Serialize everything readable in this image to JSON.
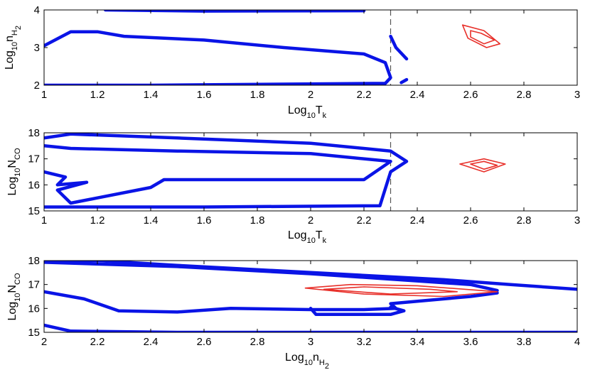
{
  "chart_data": [
    {
      "type": "contour",
      "xlim": [
        1,
        3
      ],
      "ylim": [
        2,
        4
      ],
      "x_ticks": [
        "1",
        "1.2",
        "1.4",
        "1.6",
        "1.8",
        "2",
        "2.2",
        "2.4",
        "2.6",
        "2.8",
        "3"
      ],
      "y_ticks": [
        "2",
        "3",
        "4"
      ],
      "xlabel": {
        "base": "Log",
        "base_sub": "10",
        "var": "T",
        "var_sub": "k"
      },
      "ylabel": {
        "base": "Log",
        "base_sub": "10",
        "var": "n",
        "var_sub": "H",
        "var_subsub": "2"
      },
      "vline_x": 2.3,
      "blue_color": "#0a14e6",
      "red_color": "#e8302a",
      "blue_contours": [
        [
          [
            1.23,
            4.0
          ],
          [
            1.6,
            3.97
          ],
          [
            2.2,
            3.98
          ]
        ],
        [
          [
            1.0,
            3.05
          ],
          [
            1.1,
            3.42
          ],
          [
            1.2,
            3.42
          ],
          [
            1.3,
            3.3
          ],
          [
            1.6,
            3.2
          ],
          [
            1.9,
            3.0
          ],
          [
            2.2,
            2.83
          ],
          [
            2.28,
            2.6
          ],
          [
            2.3,
            2.2
          ],
          [
            2.28,
            2.05
          ],
          [
            1.4,
            2.0
          ],
          [
            1.0,
            2.0
          ]
        ],
        [
          [
            2.3,
            3.3
          ],
          [
            2.32,
            3.0
          ],
          [
            2.36,
            2.7
          ]
        ],
        [
          [
            2.34,
            2.07
          ],
          [
            2.36,
            2.15
          ]
        ]
      ],
      "red_contours": [
        [
          [
            2.57,
            3.6
          ],
          [
            2.65,
            3.45
          ],
          [
            2.71,
            3.1
          ],
          [
            2.66,
            3.0
          ],
          [
            2.59,
            3.25
          ],
          [
            2.57,
            3.6
          ]
        ],
        [
          [
            2.6,
            3.45
          ],
          [
            2.64,
            3.38
          ],
          [
            2.69,
            3.2
          ],
          [
            2.65,
            3.1
          ],
          [
            2.6,
            3.28
          ],
          [
            2.6,
            3.45
          ]
        ]
      ]
    },
    {
      "type": "contour",
      "xlim": [
        1,
        3
      ],
      "ylim": [
        15,
        18
      ],
      "x_ticks": [
        "1",
        "1.2",
        "1.4",
        "1.6",
        "1.8",
        "2",
        "2.2",
        "2.4",
        "2.6",
        "2.8",
        "3"
      ],
      "y_ticks": [
        "15",
        "16",
        "17",
        "18"
      ],
      "xlabel": {
        "base": "Log",
        "base_sub": "10",
        "var": "T",
        "var_sub": "k"
      },
      "ylabel": {
        "base": "Log",
        "base_sub": "10",
        "var": "N",
        "var_sub": "CO"
      },
      "vline_x": 2.3,
      "blue_color": "#0a14e6",
      "red_color": "#e8302a",
      "blue_contours": [
        [
          [
            1.0,
            17.8
          ],
          [
            1.1,
            17.95
          ],
          [
            1.5,
            17.8
          ],
          [
            2.0,
            17.6
          ],
          [
            2.3,
            17.3
          ],
          [
            2.36,
            16.9
          ],
          [
            2.3,
            16.5
          ],
          [
            2.26,
            15.2
          ],
          [
            1.6,
            15.15
          ],
          [
            1.0,
            15.15
          ]
        ],
        [
          [
            1.0,
            16.5
          ],
          [
            1.08,
            16.3
          ],
          [
            1.05,
            16.0
          ],
          [
            1.16,
            16.1
          ],
          [
            1.05,
            15.8
          ],
          [
            1.1,
            15.3
          ],
          [
            1.2,
            15.5
          ],
          [
            1.4,
            15.9
          ],
          [
            1.45,
            16.2
          ],
          [
            2.2,
            16.2
          ],
          [
            2.3,
            16.9
          ],
          [
            2.0,
            17.2
          ],
          [
            1.5,
            17.3
          ],
          [
            1.1,
            17.4
          ],
          [
            1.0,
            17.5
          ]
        ]
      ],
      "red_contours": [
        [
          [
            2.56,
            16.8
          ],
          [
            2.65,
            17.0
          ],
          [
            2.73,
            16.8
          ],
          [
            2.65,
            16.5
          ],
          [
            2.56,
            16.8
          ]
        ],
        [
          [
            2.6,
            16.8
          ],
          [
            2.65,
            16.9
          ],
          [
            2.7,
            16.75
          ],
          [
            2.65,
            16.6
          ],
          [
            2.6,
            16.8
          ]
        ]
      ]
    },
    {
      "type": "contour",
      "xlim": [
        2,
        4
      ],
      "ylim": [
        15,
        18
      ],
      "x_ticks": [
        "2",
        "2.2",
        "2.4",
        "2.6",
        "2.8",
        "3",
        "3.2",
        "3.4",
        "3.6",
        "3.8",
        "4"
      ],
      "y_ticks": [
        "15",
        "16",
        "17",
        "18"
      ],
      "xlabel": {
        "base": "Log",
        "base_sub": "10",
        "var": "n",
        "var_sub": "H",
        "var_subsub": "2"
      },
      "ylabel": {
        "base": "Log",
        "base_sub": "10",
        "var": "N",
        "var_sub": "CO"
      },
      "vline_x": null,
      "blue_color": "#0a14e6",
      "red_color": "#e8302a",
      "blue_contours": [
        [
          [
            2.0,
            17.95
          ],
          [
            2.2,
            18.0
          ],
          [
            2.5,
            17.8
          ],
          [
            3.0,
            17.5
          ],
          [
            3.5,
            17.2
          ],
          [
            3.75,
            17.0
          ],
          [
            4.0,
            16.8
          ]
        ],
        [
          [
            2.0,
            17.93
          ],
          [
            2.5,
            17.75
          ],
          [
            3.0,
            17.45
          ],
          [
            3.6,
            17.0
          ],
          [
            3.7,
            16.75
          ]
        ],
        [
          [
            2.0,
            16.7
          ],
          [
            2.15,
            16.4
          ],
          [
            2.28,
            15.9
          ],
          [
            2.5,
            15.85
          ],
          [
            2.7,
            16.0
          ],
          [
            3.0,
            15.95
          ],
          [
            3.2,
            15.95
          ],
          [
            3.32,
            16.0
          ],
          [
            3.3,
            16.2
          ],
          [
            3.6,
            16.5
          ],
          [
            3.7,
            16.65
          ]
        ],
        [
          [
            3.0,
            16.0
          ],
          [
            3.02,
            15.75
          ],
          [
            3.3,
            15.75
          ],
          [
            3.35,
            15.9
          ],
          [
            3.3,
            16.05
          ]
        ],
        [
          [
            2.0,
            15.3
          ],
          [
            2.1,
            15.05
          ],
          [
            2.5,
            15.0
          ],
          [
            4.0,
            15.0
          ]
        ]
      ],
      "red_contours": [
        [
          [
            2.98,
            16.85
          ],
          [
            3.15,
            17.0
          ],
          [
            3.4,
            16.95
          ],
          [
            3.7,
            16.7
          ],
          [
            3.5,
            16.5
          ],
          [
            3.2,
            16.6
          ],
          [
            2.98,
            16.85
          ]
        ],
        [
          [
            3.05,
            16.8
          ],
          [
            3.2,
            16.9
          ],
          [
            3.45,
            16.8
          ],
          [
            3.55,
            16.7
          ],
          [
            3.3,
            16.6
          ],
          [
            3.05,
            16.8
          ]
        ]
      ]
    }
  ]
}
